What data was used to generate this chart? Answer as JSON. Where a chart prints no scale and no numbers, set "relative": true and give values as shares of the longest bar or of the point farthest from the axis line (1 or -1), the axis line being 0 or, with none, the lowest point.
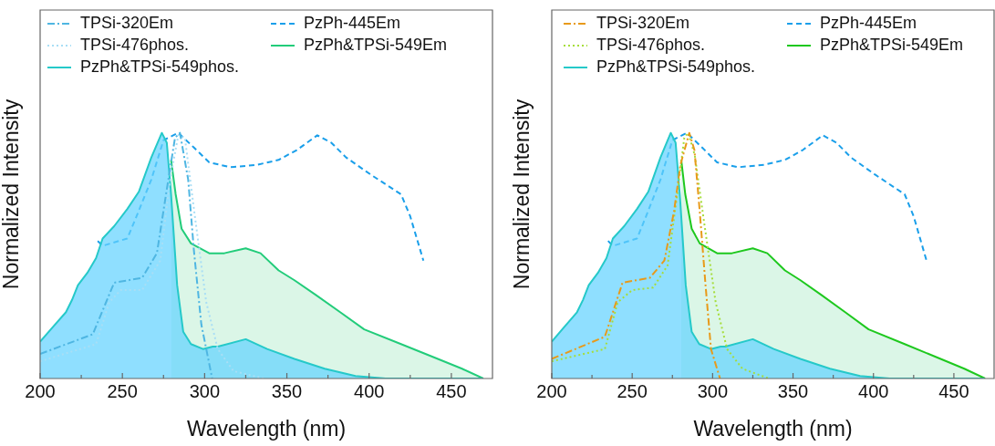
{
  "chart_data": [
    {
      "type": "line",
      "xlabel": "Wavelength (nm)",
      "ylabel": "Normalized Intensity",
      "relative": true,
      "legend": "top",
      "xlim": [
        200,
        475
      ],
      "xticks": [
        200,
        {
          "value": 225,
          "label": null
        },
        250,
        {
          "value": 275,
          "label": null
        },
        300,
        {
          "value": 325,
          "label": null
        },
        350,
        {
          "value": 375,
          "label": null
        },
        400,
        {
          "value": 425,
          "label": null
        },
        450
      ],
      "series": [
        {
          "name": "TPSi-320Em",
          "color": "#4fb6e2",
          "line_style": "dashdot",
          "type": "line",
          "x": [
            200,
            232,
            245,
            262,
            271,
            277,
            282,
            285,
            290,
            293.5,
            298,
            304.6
          ],
          "values": [
            0.1,
            0.18,
            0.39,
            0.41,
            0.51,
            0.77,
            0.98,
            1,
            0.81,
            0.52,
            0.22,
            0
          ]
        },
        {
          "name": "TPSi-476phos.",
          "color": "#a9def5",
          "line_style": "dotted",
          "type": "line",
          "x": [
            200,
            234,
            242,
            249,
            262,
            273,
            279,
            284,
            288,
            293.5,
            301,
            308,
            317.6,
            336
          ],
          "values": [
            0.07,
            0.14,
            0.31,
            0.36,
            0.36,
            0.48,
            0.81,
            0.99,
            0.98,
            0.69,
            0.31,
            0.12,
            0.03,
            0
          ]
        },
        {
          "name": "PzPh&TPSi-549phos.",
          "color": "#25c9c9",
          "line_style": "solid",
          "type": "area",
          "x": [
            200,
            206.5,
            215.7,
            219.4,
            223,
            228.7,
            234,
            238,
            245,
            253,
            260,
            267.6,
            274,
            277,
            279.6,
            283.3,
            287,
            291.7,
            299,
            305,
            308,
            325,
            338,
            354.6,
            373,
            391.7,
            410,
            469
          ],
          "values": [
            0.15,
            0.2,
            0.27,
            0.32,
            0.38,
            0.43,
            0.49,
            0.57,
            0.62,
            0.69,
            0.76,
            0.9,
            1,
            0.96,
            0.75,
            0.38,
            0.19,
            0.14,
            0.12,
            0.13,
            0.13,
            0.16,
            0.12,
            0.08,
            0.04,
            0.01,
            0,
            0
          ]
        },
        {
          "name": "PzPh-445Em",
          "color": "#1a9fea",
          "line_style": "dashed",
          "type": "line",
          "x": [
            235,
            238,
            253,
            258,
            267.6,
            275,
            284,
            293.5,
            302.8,
            315.7,
            332,
            345,
            356,
            368.5,
            377,
            386,
            401,
            419.4,
            425,
            433
          ],
          "values": [
            0.56,
            0.54,
            0.57,
            0.65,
            0.81,
            0.97,
            1,
            0.94,
            0.88,
            0.86,
            0.87,
            0.89,
            0.93,
            0.99,
            0.96,
            0.9,
            0.83,
            0.75,
            0.66,
            0.48
          ]
        },
        {
          "name": "PzPh&TPSi-549Em",
          "color": "#22cc7a",
          "line_style": "solid",
          "type": "area",
          "x": [
            279.6,
            282.4,
            286,
            291.7,
            302.8,
            305,
            312,
            325,
            334,
            345,
            354.6,
            367.6,
            382.4,
            397,
            419.4,
            438,
            456.5,
            469.4
          ],
          "values": [
            0.89,
            0.75,
            0.61,
            0.55,
            0.51,
            0.51,
            0.51,
            0.53,
            0.51,
            0.44,
            0.4,
            0.34,
            0.27,
            0.2,
            0.14,
            0.09,
            0.04,
            0
          ]
        }
      ]
    },
    {
      "type": "line",
      "xlabel": "Wavelength (nm)",
      "ylabel": "Normalized Intensity",
      "relative": true,
      "legend": "top",
      "xlim": [
        200,
        475
      ],
      "xticks": [
        200,
        {
          "value": 225,
          "label": null
        },
        250,
        {
          "value": 275,
          "label": null
        },
        300,
        {
          "value": 325,
          "label": null
        },
        350,
        {
          "value": 375,
          "label": null
        },
        400,
        {
          "value": 425,
          "label": null
        },
        450
      ],
      "series": [
        {
          "name": "TPSi-320Em",
          "color": "#e89a1a",
          "line_style": "dashdot",
          "type": "line",
          "x": [
            200,
            233,
            244,
            261,
            270,
            276,
            280,
            285.5,
            288.7,
            292,
            295.6,
            299,
            304.6
          ],
          "values": [
            0.08,
            0.17,
            0.39,
            0.41,
            0.48,
            0.68,
            0.87,
            1,
            0.93,
            0.68,
            0.38,
            0.12,
            0
          ]
        },
        {
          "name": "TPSi-476phos.",
          "color": "#a6dd3a",
          "line_style": "dotted",
          "type": "line",
          "x": [
            200,
            233,
            241,
            250,
            263,
            272,
            277.8,
            282.4,
            284.8,
            288.9,
            294.4,
            301.9,
            309,
            318.5,
            335
          ],
          "values": [
            0.07,
            0.12,
            0.31,
            0.36,
            0.37,
            0.46,
            0.74,
            0.98,
            1,
            0.91,
            0.65,
            0.31,
            0.12,
            0.04,
            0
          ]
        },
        {
          "name": "PzPh&TPSi-549phos.",
          "color": "#25c9c9",
          "line_style": "solid",
          "type": "area",
          "x": [
            200,
            206.5,
            215.7,
            219.4,
            223,
            228.7,
            234,
            238,
            245,
            253,
            260,
            267.6,
            274,
            277,
            279.6,
            283.3,
            287,
            291.7,
            299,
            305,
            308,
            325,
            338,
            354.6,
            373,
            391.7,
            410,
            469
          ],
          "values": [
            0.15,
            0.2,
            0.27,
            0.32,
            0.38,
            0.43,
            0.49,
            0.57,
            0.62,
            0.69,
            0.76,
            0.9,
            1,
            0.96,
            0.75,
            0.38,
            0.19,
            0.14,
            0.12,
            0.13,
            0.13,
            0.16,
            0.12,
            0.08,
            0.04,
            0.01,
            0,
            0
          ]
        },
        {
          "name": "PzPh-445Em",
          "color": "#1a9fea",
          "line_style": "dashed",
          "type": "line",
          "x": [
            235,
            238,
            253,
            258,
            267.6,
            275,
            284,
            293.5,
            302.8,
            315.7,
            332,
            345,
            356,
            368.5,
            377,
            386,
            401,
            419.4,
            425,
            433
          ],
          "values": [
            0.56,
            0.54,
            0.57,
            0.65,
            0.81,
            0.97,
            1,
            0.94,
            0.88,
            0.86,
            0.87,
            0.89,
            0.93,
            0.99,
            0.96,
            0.9,
            0.83,
            0.75,
            0.66,
            0.48
          ]
        },
        {
          "name": "PzPh&TPSi-549Em",
          "color": "#1ec81e",
          "line_style": "solid",
          "type": "area",
          "x": [
            280.5,
            283,
            287,
            292,
            302.8,
            305,
            312,
            325,
            334,
            345,
            354.6,
            367.6,
            382.4,
            397,
            419.4,
            438,
            456.5,
            469.4
          ],
          "values": [
            0.89,
            0.75,
            0.61,
            0.55,
            0.51,
            0.51,
            0.51,
            0.53,
            0.51,
            0.44,
            0.4,
            0.34,
            0.27,
            0.2,
            0.14,
            0.09,
            0.04,
            0
          ]
        }
      ]
    }
  ]
}
